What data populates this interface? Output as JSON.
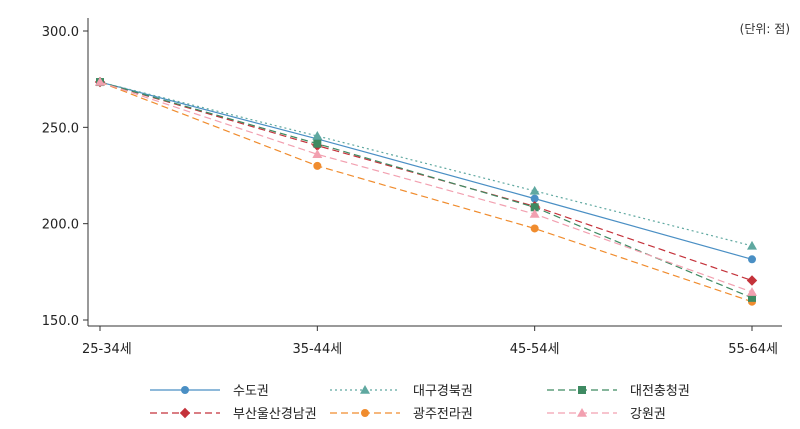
{
  "chart_data": {
    "type": "line",
    "unit_note": "(단위: 점)",
    "title": "",
    "xlabel": "",
    "ylabel": "",
    "categories": [
      "25-34세",
      "35-44세",
      "45-54세",
      "55-64세"
    ],
    "ylim": [
      150.0,
      300.0
    ],
    "yticks": [
      "150.0",
      "200.0",
      "250.0",
      "300.0"
    ],
    "grid": false,
    "legend_position": "bottom",
    "series": [
      {
        "name": "수도권",
        "values": [
          273.5,
          244.0,
          213.0,
          181.5
        ],
        "color": "#4a8fc4",
        "dash": "solid",
        "marker": "circle"
      },
      {
        "name": "부산울산경남권",
        "values": [
          273.5,
          240.5,
          209.0,
          170.5
        ],
        "color": "#c4323a",
        "dash": "dashed",
        "marker": "diamond"
      },
      {
        "name": "대구경북권",
        "values": [
          273.5,
          245.5,
          217.0,
          188.5
        ],
        "color": "#5fa8a0",
        "dash": "dotted",
        "marker": "triangle"
      },
      {
        "name": "광주전라권",
        "values": [
          273.5,
          230.0,
          197.5,
          159.5
        ],
        "color": "#f08c2e",
        "dash": "dashed",
        "marker": "circle"
      },
      {
        "name": "대전충청권",
        "values": [
          273.5,
          241.5,
          208.5,
          161.5
        ],
        "color": "#3e8a62",
        "dash": "dashed",
        "marker": "square"
      },
      {
        "name": "강원권",
        "values": [
          273.5,
          236.0,
          205.0,
          164.5
        ],
        "color": "#f2a0b0",
        "dash": "dashed",
        "marker": "triangle"
      }
    ]
  }
}
